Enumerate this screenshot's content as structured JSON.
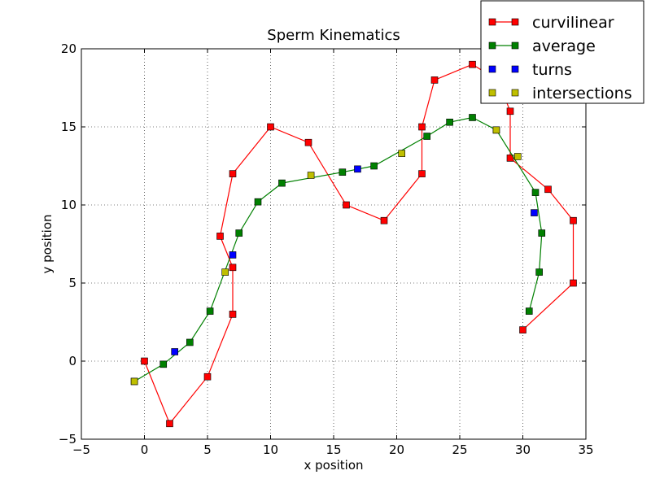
{
  "chart_data": {
    "type": "scatter",
    "title": "Sperm Kinematics",
    "xlabel": "x position",
    "ylabel": "y position",
    "xlim": [
      -5,
      35
    ],
    "ylim": [
      -5,
      20
    ],
    "xticks": [
      -5,
      0,
      5,
      10,
      15,
      20,
      25,
      30,
      35
    ],
    "yticks": [
      -5,
      0,
      5,
      10,
      15,
      20
    ],
    "grid": true,
    "legend_position": "top-right",
    "series": [
      {
        "name": "curvilinear",
        "color": "#ff0000",
        "marker": "square",
        "line": true,
        "points": [
          [
            0,
            0
          ],
          [
            2,
            -4
          ],
          [
            5,
            -1
          ],
          [
            7,
            3
          ],
          [
            7,
            6
          ],
          [
            6,
            8
          ],
          [
            7,
            12
          ],
          [
            10,
            15
          ],
          [
            13,
            14
          ],
          [
            16,
            10
          ],
          [
            19,
            9
          ],
          [
            22,
            12
          ],
          [
            22,
            15
          ],
          [
            23,
            18
          ],
          [
            26,
            19
          ],
          [
            28,
            18
          ],
          [
            29,
            16
          ],
          [
            29,
            13
          ],
          [
            32,
            11
          ],
          [
            34,
            9
          ],
          [
            34,
            5
          ],
          [
            30,
            2
          ]
        ]
      },
      {
        "name": "average",
        "color": "#008000",
        "marker": "square",
        "line": true,
        "points": [
          [
            -0.8,
            -1.3
          ],
          [
            1.5,
            -0.2
          ],
          [
            3.6,
            1.2
          ],
          [
            5.2,
            3.2
          ],
          [
            7.5,
            8.2
          ],
          [
            9,
            10.2
          ],
          [
            10.9,
            11.4
          ],
          [
            15.7,
            12.1
          ],
          [
            18.2,
            12.5
          ],
          [
            22.4,
            14.4
          ],
          [
            24.2,
            15.3
          ],
          [
            26,
            15.6
          ],
          [
            27.9,
            14.8
          ],
          [
            31,
            10.8
          ],
          [
            31.5,
            8.2
          ],
          [
            31.3,
            5.7
          ],
          [
            30.5,
            3.2
          ]
        ]
      },
      {
        "name": "turns",
        "color": "#0000ff",
        "marker": "square",
        "line": false,
        "points": [
          [
            2.4,
            0.6
          ],
          [
            7,
            6.8
          ],
          [
            16.9,
            12.3
          ],
          [
            30.9,
            9.5
          ]
        ]
      },
      {
        "name": "intersections",
        "color": "#bfbf00",
        "marker": "square",
        "line": false,
        "points": [
          [
            -0.8,
            -1.3
          ],
          [
            6.4,
            5.7
          ],
          [
            13.2,
            11.9
          ],
          [
            20.4,
            13.3
          ],
          [
            27.9,
            14.8
          ],
          [
            29.6,
            13.1
          ]
        ]
      }
    ]
  }
}
